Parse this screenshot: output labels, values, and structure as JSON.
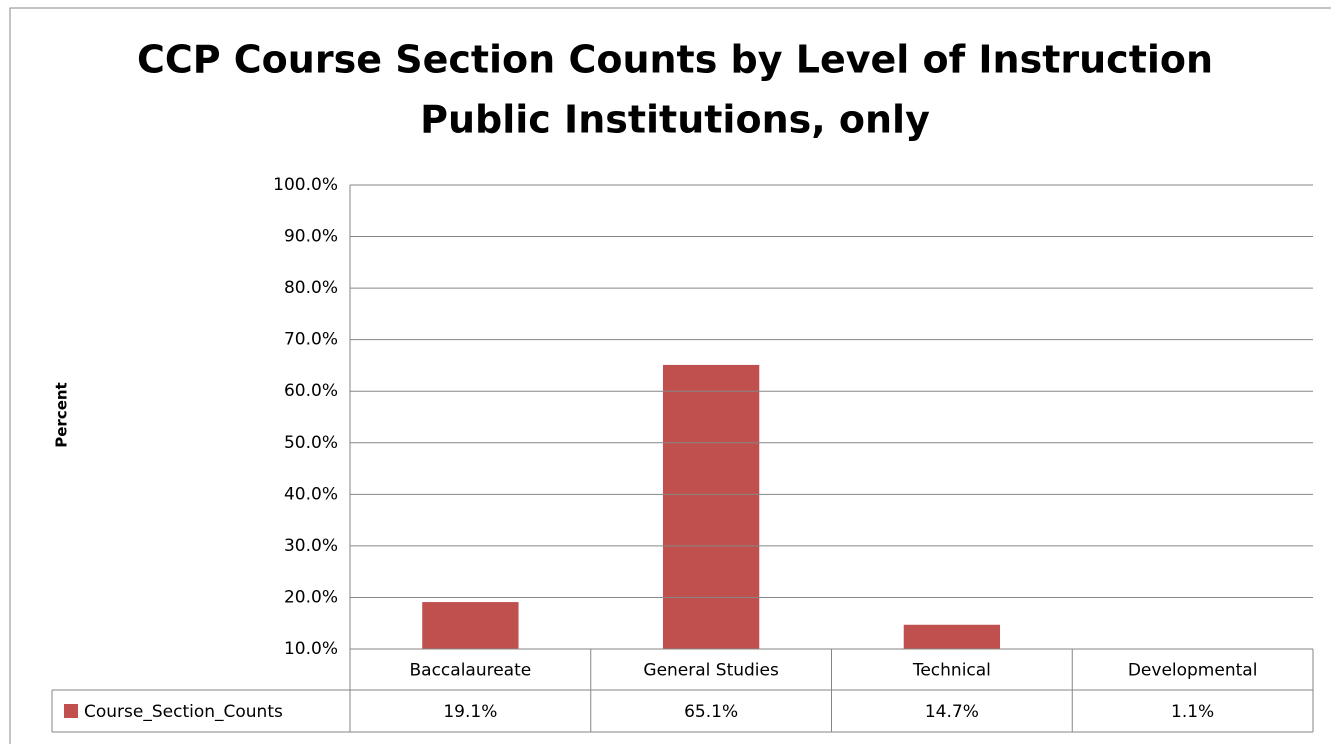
{
  "chart_data": {
    "type": "bar",
    "title": "CCP Course Section Counts by Level of Instruction",
    "subtitle": "Public Institutions, only",
    "y_label": "Percent",
    "categories": [
      "Baccalaureate",
      "General Studies",
      "Technical",
      "Developmental"
    ],
    "series": [
      {
        "name": "Course_Section_Counts",
        "color": "#c0504d",
        "values": [
          19.1,
          65.1,
          14.7,
          1.1
        ],
        "value_labels": [
          "19.1%",
          "65.1%",
          "14.7%",
          "1.1%"
        ]
      }
    ],
    "ylim": [
      10,
      100
    ],
    "yticks": [
      {
        "value": 10,
        "label": "10.0%"
      },
      {
        "value": 20,
        "label": "20.0%"
      },
      {
        "value": 30,
        "label": "30.0%"
      },
      {
        "value": 40,
        "label": "40.0%"
      },
      {
        "value": 50,
        "label": "50.0%"
      },
      {
        "value": 60,
        "label": "60.0%"
      },
      {
        "value": 70,
        "label": "70.0%"
      },
      {
        "value": 80,
        "label": "80.0%"
      },
      {
        "value": 90,
        "label": "90.0%"
      },
      {
        "value": 100,
        "label": "100.0%"
      }
    ],
    "grid": true
  }
}
